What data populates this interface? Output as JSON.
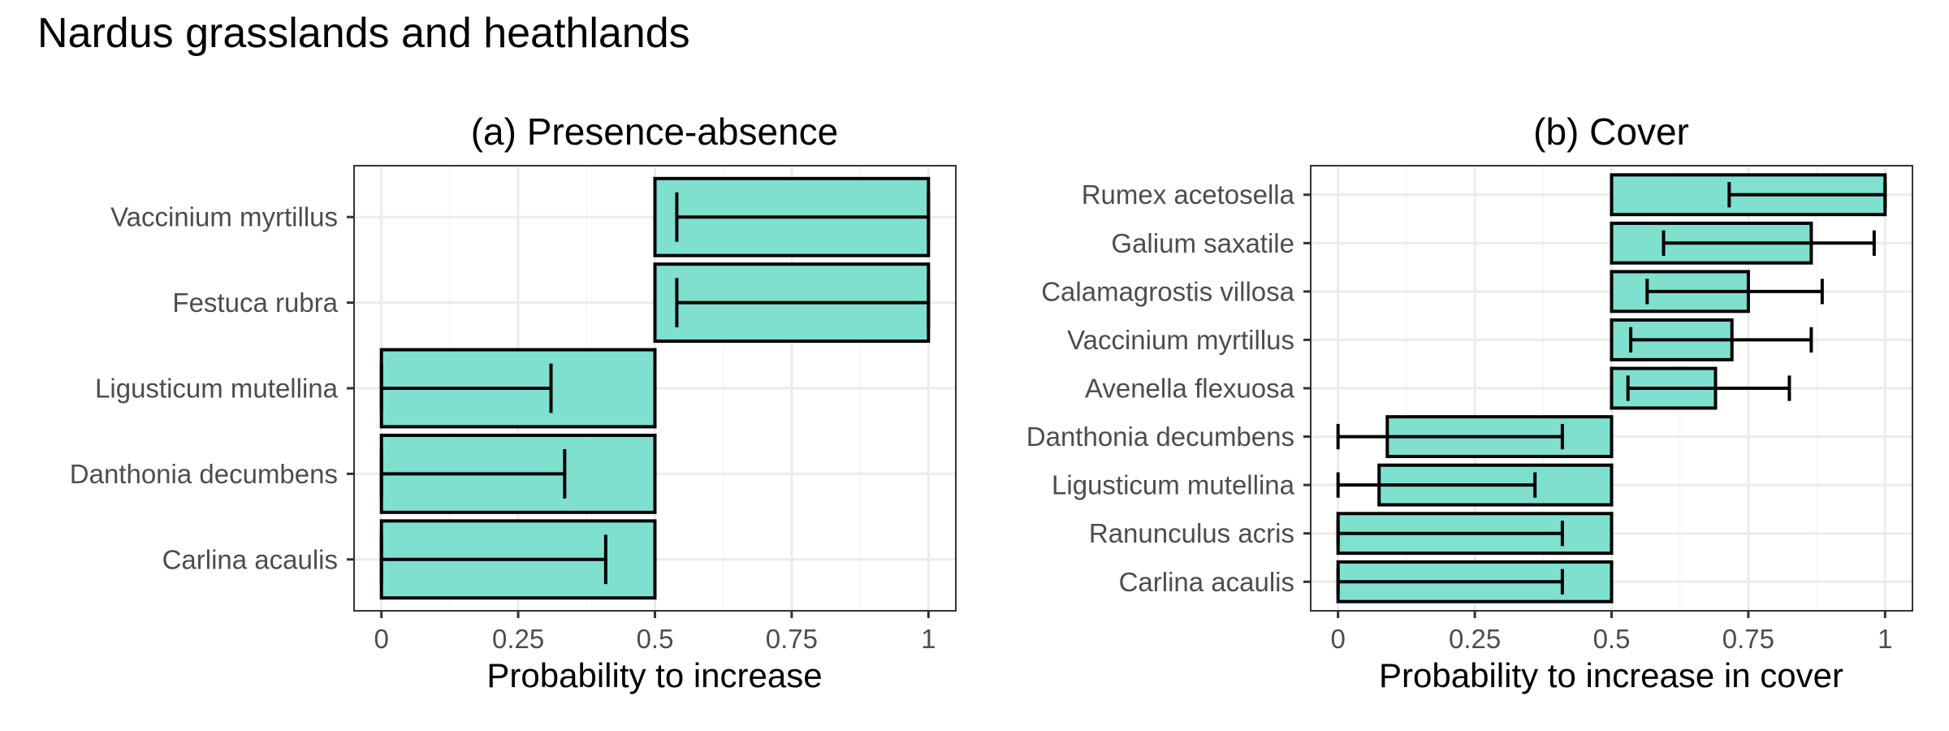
{
  "figure": {
    "title": "Nardus grasslands and heathlands",
    "bar_color": "#7fe0d0"
  },
  "chart_data": [
    {
      "type": "bar",
      "orientation": "horizontal",
      "title": "(a) Presence-absence",
      "xlabel": "Probability to increase",
      "ylabel": "",
      "xlim": [
        0,
        1
      ],
      "baseline": 0.5,
      "x_ticks": [
        "0",
        "0.25",
        "0.5",
        "0.75",
        "1"
      ],
      "x_tick_values": [
        0,
        0.25,
        0.5,
        0.75,
        1
      ],
      "categories": [
        "Vaccinium myrtillus",
        "Festuca rubra",
        "Ligusticum mutellina",
        "Danthonia decumbens",
        "Carlina acaulis"
      ],
      "values": [
        1.0,
        1.0,
        0.0,
        0.0,
        0.0
      ],
      "error_low": [
        0.54,
        0.54,
        0.0,
        0.0,
        0.0
      ],
      "error_high": [
        1.0,
        1.0,
        0.31,
        0.335,
        0.41
      ],
      "grid": true
    },
    {
      "type": "bar",
      "orientation": "horizontal",
      "title": "(b) Cover",
      "xlabel": "Probability to increase in cover",
      "ylabel": "",
      "xlim": [
        0,
        1
      ],
      "baseline": 0.5,
      "x_ticks": [
        "0",
        "0.25",
        "0.5",
        "0.75",
        "1"
      ],
      "x_tick_values": [
        0,
        0.25,
        0.5,
        0.75,
        1
      ],
      "categories": [
        "Rumex acetosella",
        "Galium saxatile",
        "Calamagrostis villosa",
        "Vaccinium myrtillus",
        "Avenella flexuosa",
        "Danthonia decumbens",
        "Ligusticum mutellina",
        "Ranunculus acris",
        "Carlina acaulis"
      ],
      "values": [
        1.0,
        0.865,
        0.75,
        0.72,
        0.69,
        0.09,
        0.075,
        0.0,
        0.0
      ],
      "error_low": [
        0.715,
        0.595,
        0.565,
        0.535,
        0.53,
        0.0,
        0.0,
        0.0,
        0.0
      ],
      "error_high": [
        1.0,
        0.98,
        0.885,
        0.865,
        0.825,
        0.41,
        0.36,
        0.41,
        0.41
      ],
      "grid": true
    }
  ]
}
